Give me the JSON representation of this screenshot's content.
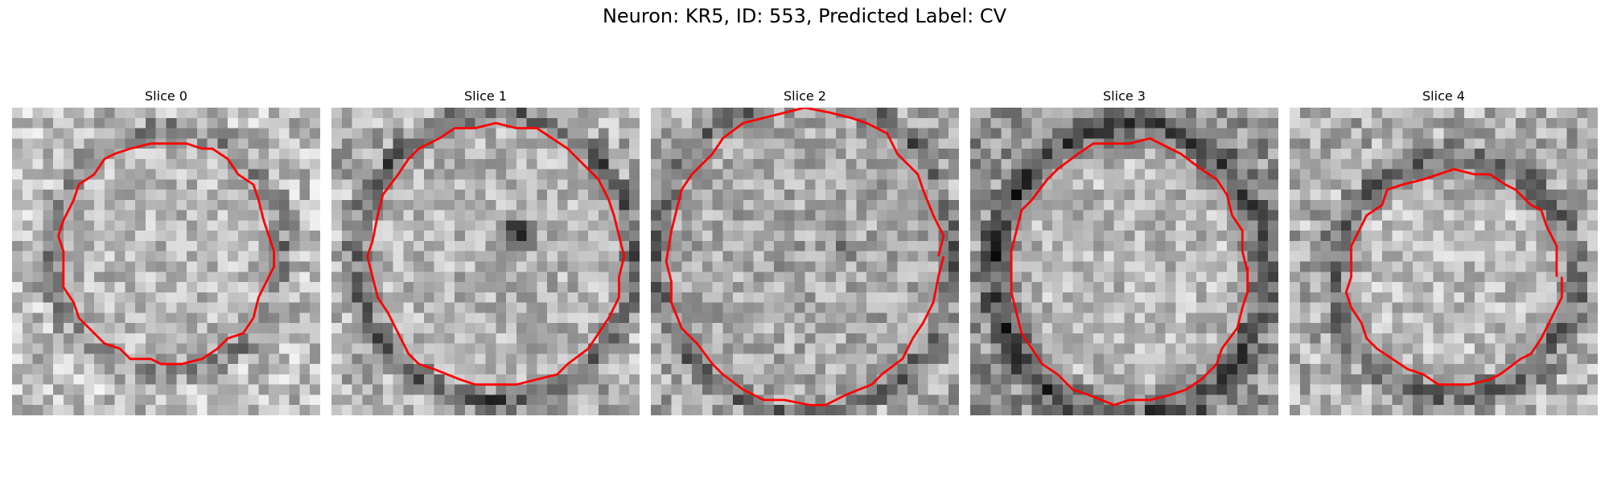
{
  "figure": {
    "title": "Neuron: KR5, ID: 553, Predicted Label: CV"
  },
  "panels": [
    {
      "title": "Slice 0"
    },
    {
      "title": "Slice 1"
    },
    {
      "title": "Slice 2"
    },
    {
      "title": "Slice 3"
    },
    {
      "title": "Slice 4"
    }
  ],
  "colors": {
    "contour": "#ff0000"
  }
}
